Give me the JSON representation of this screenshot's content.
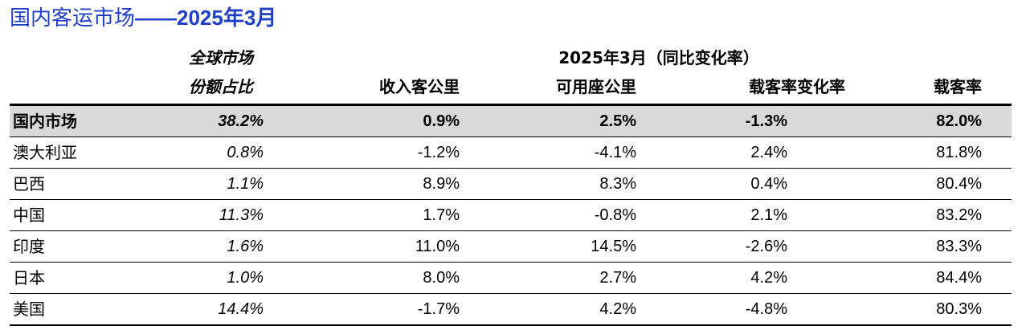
{
  "title": {
    "cn": "国内客运市场",
    "dash": "——",
    "date": "2025年3月"
  },
  "headers": {
    "share_line1": "全球市场",
    "share_line2": "份额占比",
    "group_title": "2025年3月（同比变化率）",
    "rpk": "收入客公里",
    "ask": "可用座公里",
    "plf_change": "载客率变化率",
    "plf": "载客率"
  },
  "rows": [
    {
      "name": "国内市场",
      "share": "38.2%",
      "rpk": "0.9%",
      "ask": "2.5%",
      "plf_change": "-1.3%",
      "plf": "82.0%"
    },
    {
      "name": "澳大利亚",
      "share": "0.8%",
      "rpk": "-1.2%",
      "ask": "-4.1%",
      "plf_change": "2.4%",
      "plf": "81.8%"
    },
    {
      "name": "巴西",
      "share": "1.1%",
      "rpk": "8.9%",
      "ask": "8.3%",
      "plf_change": "0.4%",
      "plf": "80.4%"
    },
    {
      "name": "中国",
      "share": "11.3%",
      "rpk": "1.7%",
      "ask": "-0.8%",
      "plf_change": "2.1%",
      "plf": "83.2%"
    },
    {
      "name": "印度",
      "share": "1.6%",
      "rpk": "11.0%",
      "ask": "14.5%",
      "plf_change": "-2.6%",
      "plf": "83.3%"
    },
    {
      "name": "日本",
      "share": "1.0%",
      "rpk": "8.0%",
      "ask": "2.7%",
      "plf_change": "4.2%",
      "plf": "84.4%"
    },
    {
      "name": "美国",
      "share": "14.4%",
      "rpk": "-1.7%",
      "ask": "4.2%",
      "plf_change": "-4.8%",
      "plf": "80.3%"
    }
  ],
  "colors": {
    "title": "#1f3fc8",
    "highlight_row": "#d9d9d9"
  }
}
